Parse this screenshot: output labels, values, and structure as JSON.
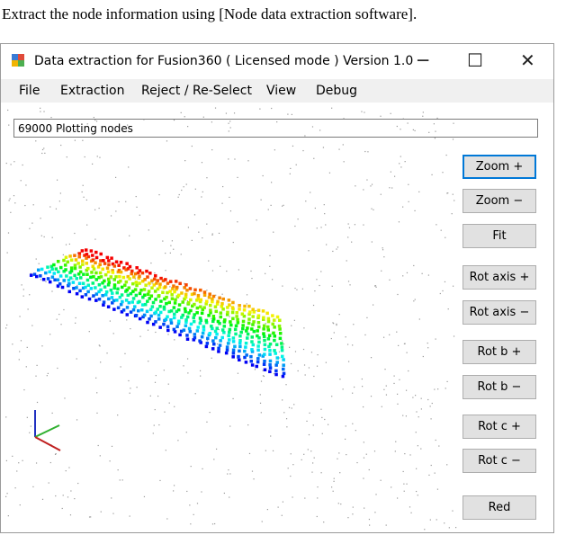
{
  "caption": "Extract the node information using [Node data extraction software].",
  "window": {
    "title": "Data extraction for Fusion360 ( Licensed mode ) Version 1.0",
    "menu": [
      "File",
      "Extraction",
      "Reject / Re-Select",
      "View",
      "Debug"
    ],
    "status_box": "69000 Plotting nodes",
    "buttons": [
      "Zoom +",
      "Zoom −",
      "Fit",
      "Rot axis +",
      "Rot axis −",
      "Rot b +",
      "Rot b −",
      "Rot c +",
      "Rot c −",
      "Red"
    ]
  }
}
